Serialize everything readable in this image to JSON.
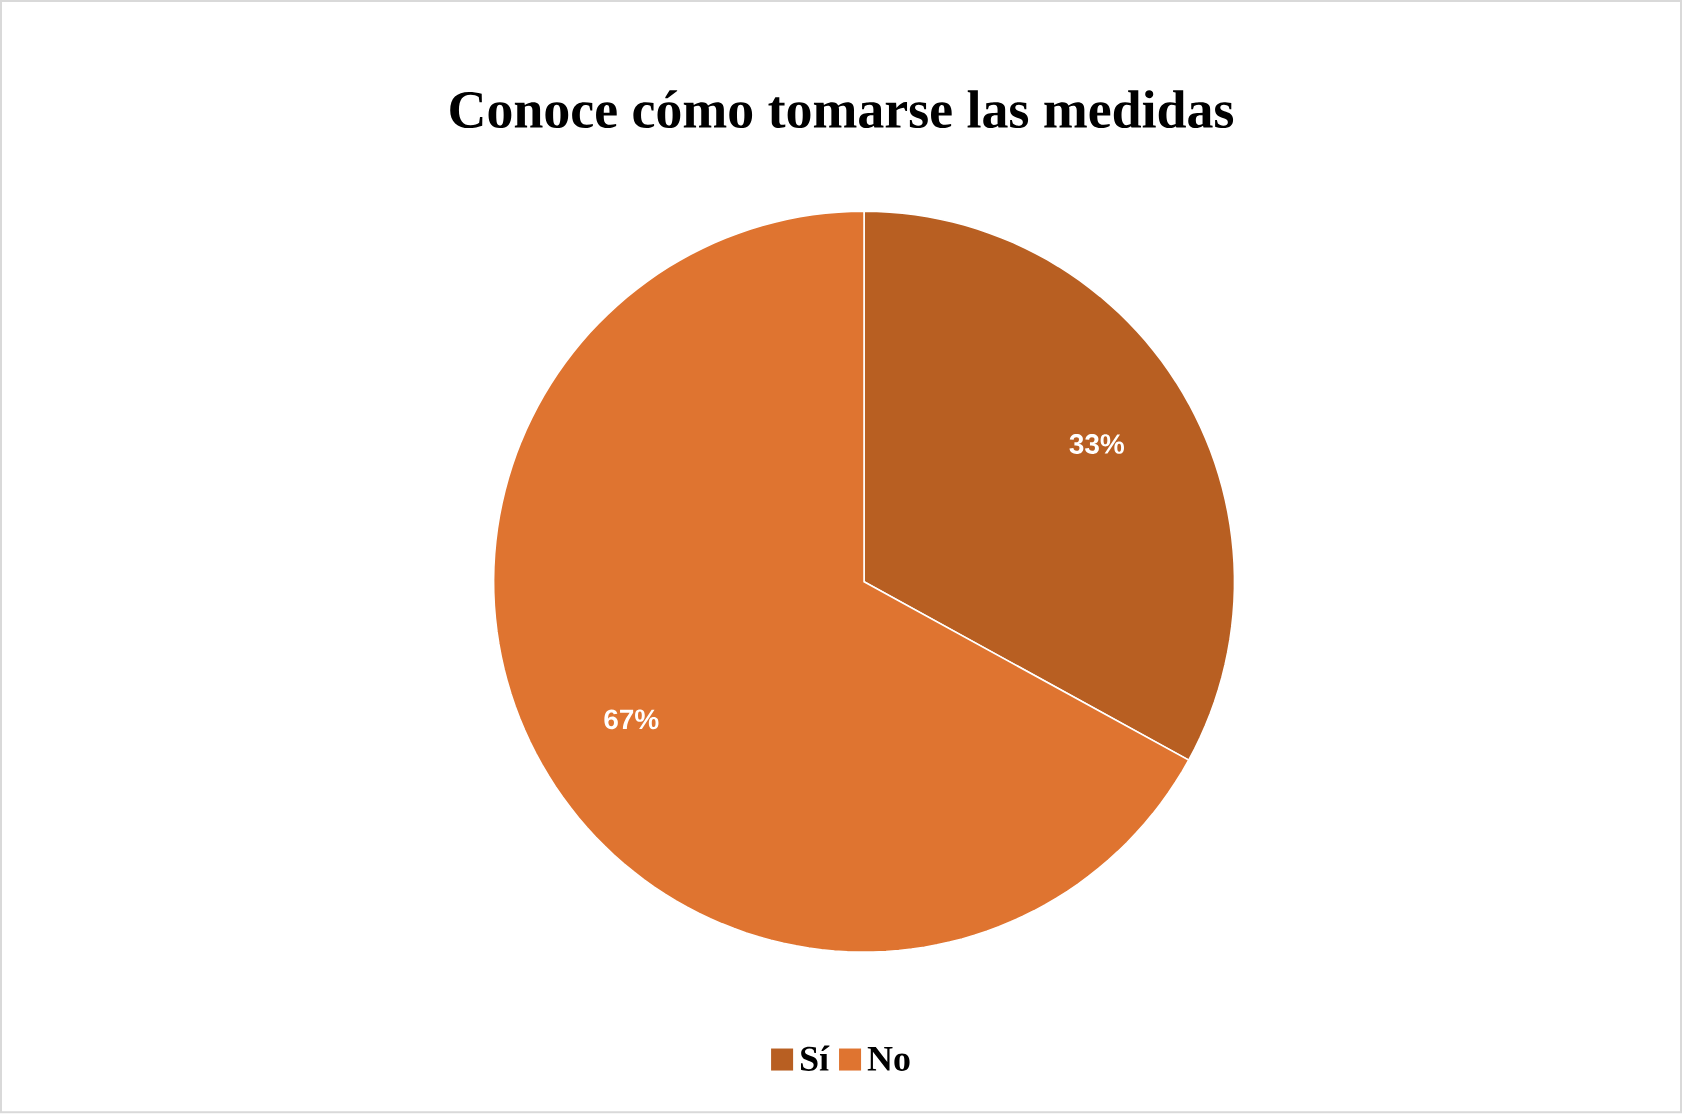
{
  "chart_data": {
    "type": "pie",
    "title": "Conoce cómo tomarse las medidas",
    "categories": [
      "Sí",
      "No"
    ],
    "values": [
      33,
      67
    ],
    "colors": [
      "#b85f22",
      "#df7430"
    ],
    "value_labels": [
      "33%",
      "67%"
    ],
    "legend": "bottom"
  }
}
